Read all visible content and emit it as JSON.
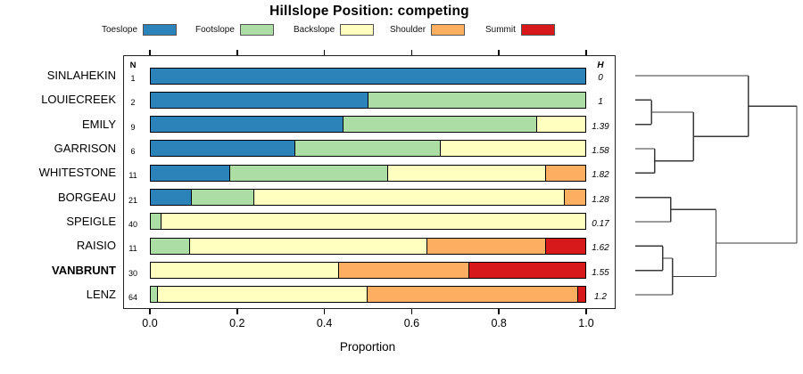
{
  "title": "Hillslope Position: competing",
  "legend": {
    "items": [
      {
        "label": "Toeslope",
        "color": "#2B83BA"
      },
      {
        "label": "Footslope",
        "color": "#ABDDA4"
      },
      {
        "label": "Backslope",
        "color": "#FFFFBF"
      },
      {
        "label": "Shoulder",
        "color": "#FDAE61"
      },
      {
        "label": "Summit",
        "color": "#D7191C"
      }
    ]
  },
  "table": {
    "n_header": "N",
    "h_header": "H"
  },
  "axis": {
    "label": "Proportion",
    "ticks": [
      "0.0",
      "0.2",
      "0.4",
      "0.6",
      "0.8",
      "1.0"
    ],
    "min": 0,
    "max": 1
  },
  "chart_data": {
    "type": "bar",
    "orientation": "horizontal-stacked",
    "title": "Hillslope Position: competing",
    "xlabel": "Proportion",
    "ylabel": "",
    "xlim": [
      0,
      1
    ],
    "grid": false,
    "legend_position": "top",
    "categories": [
      "SINLAHEKIN",
      "LOUIECREEK",
      "EMILY",
      "GARRISON",
      "WHITESTONE",
      "BORGEAU",
      "SPEIGLE",
      "RAISIO",
      "VANBRUNT",
      "LENZ"
    ],
    "bold_category": "VANBRUNT",
    "n_values": [
      "1",
      "2",
      "9",
      "6",
      "11",
      "21",
      "40",
      "11",
      "30",
      "64"
    ],
    "h_values": [
      "0",
      "1",
      "1.39",
      "1.58",
      "1.82",
      "1.28",
      "0.17",
      "1.62",
      "1.55",
      "1.2"
    ],
    "series": [
      {
        "name": "Toeslope",
        "color": "#2B83BA",
        "values": [
          1,
          0.5,
          0.444,
          0.333,
          0.182,
          0.095,
          0,
          0,
          0,
          0
        ]
      },
      {
        "name": "Footslope",
        "color": "#ABDDA4",
        "values": [
          0,
          0.5,
          0.444,
          0.333,
          0.364,
          0.143,
          0.025,
          0.091,
          0,
          0.016
        ]
      },
      {
        "name": "Backslope",
        "color": "#FFFFBF",
        "values": [
          0,
          0,
          0.111,
          0.333,
          0.364,
          0.714,
          0.975,
          0.545,
          0.433,
          0.484
        ]
      },
      {
        "name": "Shoulder",
        "color": "#FDAE61",
        "values": [
          0,
          0,
          0,
          0,
          0.091,
          0.048,
          0,
          0.273,
          0.3,
          0.484
        ]
      },
      {
        "name": "Summit",
        "color": "#D7191C",
        "values": [
          0,
          0,
          0,
          0,
          0,
          0,
          0,
          0.091,
          0.267,
          0.016
        ]
      }
    ]
  },
  "dendrogram": {
    "tree": {
      "h": 1.0,
      "children": [
        {
          "h": 0.7,
          "children": [
            {
              "leaf": 0
            },
            {
              "h": 0.36,
              "children": [
                {
                  "h": 0.1,
                  "children": [
                    {
                      "leaf": 1
                    },
                    {
                      "leaf": 2
                    }
                  ]
                },
                {
                  "h": 0.12,
                  "children": [
                    {
                      "leaf": 3
                    },
                    {
                      "leaf": 4
                    }
                  ]
                }
              ]
            }
          ]
        },
        {
          "h": 0.5,
          "children": [
            {
              "h": 0.22,
              "children": [
                {
                  "leaf": 5
                },
                {
                  "leaf": 6
                }
              ]
            },
            {
              "h": 0.23,
              "children": [
                {
                  "h": 0.17,
                  "children": [
                    {
                      "leaf": 7
                    },
                    {
                      "leaf": 8
                    }
                  ]
                },
                {
                  "leaf": 9
                }
              ]
            }
          ]
        }
      ]
    }
  }
}
